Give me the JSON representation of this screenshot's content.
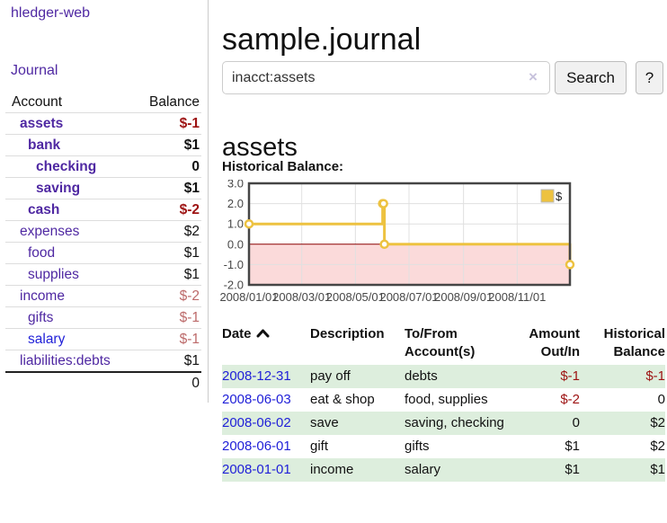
{
  "colors": {
    "link_purple": "#4f28a2",
    "link_blue": "#2121d8",
    "negative_strong": "#9d1212",
    "negative_soft": "#bc6a6a",
    "row_green": "#ddeedd",
    "chart_gold": "#EDC240",
    "chart_negative_fill": "#fbdada",
    "chart_zero_line": "#8b0000"
  },
  "sidebar": {
    "brand": "hledger-web",
    "journal_link": "Journal",
    "accounts": {
      "headers": {
        "account": "Account",
        "balance": "Balance"
      },
      "rows": [
        {
          "name": "assets",
          "level": 1,
          "in_filter": true,
          "link": "purple",
          "balance": "$-1",
          "tone": "neg-strong"
        },
        {
          "name": "bank",
          "level": 2,
          "in_filter": true,
          "link": "purple",
          "balance": "$1",
          "tone": "plain"
        },
        {
          "name": "checking",
          "level": 3,
          "in_filter": true,
          "link": "purple",
          "balance": "0",
          "tone": "plain"
        },
        {
          "name": "saving",
          "level": 3,
          "in_filter": true,
          "link": "purple",
          "balance": "$1",
          "tone": "plain"
        },
        {
          "name": "cash",
          "level": 2,
          "in_filter": true,
          "link": "purple",
          "balance": "$-2",
          "tone": "neg-strong"
        },
        {
          "name": "expenses",
          "level": 1,
          "in_filter": false,
          "link": "purple",
          "balance": "$2",
          "tone": "plain"
        },
        {
          "name": "food",
          "level": 2,
          "in_filter": false,
          "link": "purple",
          "balance": "$1",
          "tone": "plain"
        },
        {
          "name": "supplies",
          "level": 2,
          "in_filter": false,
          "link": "purple",
          "balance": "$1",
          "tone": "plain"
        },
        {
          "name": "income",
          "level": 1,
          "in_filter": false,
          "link": "purple",
          "balance": "$-2",
          "tone": "neg-soft"
        },
        {
          "name": "gifts",
          "level": 2,
          "in_filter": false,
          "link": "purple",
          "balance": "$-1",
          "tone": "neg-soft"
        },
        {
          "name": "salary",
          "level": 2,
          "in_filter": false,
          "link": "blue",
          "balance": "$-1",
          "tone": "neg-soft"
        },
        {
          "name": "liabilities:debts",
          "level": 1,
          "in_filter": false,
          "link": "purple",
          "balance": "$1",
          "tone": "plain"
        }
      ],
      "total": "0"
    }
  },
  "header": {
    "title": "sample.journal"
  },
  "search": {
    "value": "inacct:assets",
    "clear_icon": "×",
    "search_button": "Search",
    "help_button": "?"
  },
  "account_view": {
    "title": "assets",
    "chart_heading": "Historical Balance:"
  },
  "chart_data": {
    "type": "line",
    "title": "Historical Balance",
    "step": true,
    "series": [
      {
        "name": "$",
        "color": "#EDC240",
        "points": [
          [
            "2008-01-01",
            1
          ],
          [
            "2008-06-01",
            2
          ],
          [
            "2008-06-02",
            2
          ],
          [
            "2008-06-03",
            0
          ],
          [
            "2008-12-31",
            -1
          ]
        ]
      }
    ],
    "x_ticks": [
      {
        "date": "2008-01-01",
        "label": "2008/01/01"
      },
      {
        "date": "2008-03-01",
        "label": "2008/03/01"
      },
      {
        "date": "2008-05-01",
        "label": "2008/05/01"
      },
      {
        "date": "2008-07-01",
        "label": "2008/07/01"
      },
      {
        "date": "2008-09-01",
        "label": "2008/09/01"
      },
      {
        "date": "2008-11-01",
        "label": "2008/11/01"
      }
    ],
    "y_ticks": [
      "3.0",
      "2.0",
      "1.0",
      "0.0",
      "-1.0",
      "-2.0"
    ],
    "ylim": [
      -2,
      3
    ],
    "xlim": [
      "2008-01-01",
      "2008-12-31"
    ],
    "grid": true,
    "negative_region_shaded": true,
    "legend": {
      "label": "$",
      "position": "top-right"
    }
  },
  "register": {
    "columns": [
      {
        "label": "Date",
        "sort": "asc",
        "align": "left"
      },
      {
        "label": "Description",
        "align": "left"
      },
      {
        "label": "To/From Account(s)",
        "align": "left"
      },
      {
        "label": "Amount Out/In",
        "align": "right"
      },
      {
        "label": "Historical Balance",
        "align": "right"
      }
    ],
    "rows": [
      {
        "date": "2008-12-31",
        "description": "pay off",
        "accounts": "debts",
        "amount": "$-1",
        "amount_neg": true,
        "balance": "$-1",
        "balance_neg": true,
        "shaded": true
      },
      {
        "date": "2008-06-03",
        "description": "eat & shop",
        "accounts": "food, supplies",
        "amount": "$-2",
        "amount_neg": true,
        "balance": "0",
        "balance_neg": false,
        "shaded": false
      },
      {
        "date": "2008-06-02",
        "description": "save",
        "accounts": "saving, checking",
        "amount": "0",
        "amount_neg": false,
        "balance": "$2",
        "balance_neg": false,
        "shaded": true
      },
      {
        "date": "2008-06-01",
        "description": "gift",
        "accounts": "gifts",
        "amount": "$1",
        "amount_neg": false,
        "balance": "$2",
        "balance_neg": false,
        "shaded": false
      },
      {
        "date": "2008-01-01",
        "description": "income",
        "accounts": "salary",
        "amount": "$1",
        "amount_neg": false,
        "balance": "$1",
        "balance_neg": false,
        "shaded": true
      }
    ]
  }
}
